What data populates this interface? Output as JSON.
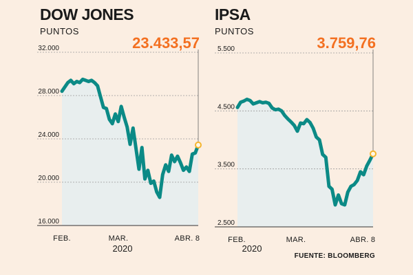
{
  "source": "FUENTE: BLOOMBERG",
  "chart_data": [
    {
      "type": "area",
      "title": "DOW JONES",
      "ylabel": "PUNTOS",
      "last_value_label": "23.433,57",
      "ylim": [
        16000,
        32000
      ],
      "yticks": [
        16000,
        20000,
        24000,
        28000,
        32000
      ],
      "ytick_labels": [
        "16.000",
        "20.000",
        "24.000",
        "28.000",
        "32.000"
      ],
      "x_labels": [
        "FEB.",
        "MAR.",
        "ABR. 8"
      ],
      "year_label": "2020",
      "colors": {
        "line": "#0b8a86",
        "fill": "#e8eeee",
        "highlight": "#f37021",
        "marker": "#f5b52e"
      },
      "grid": true,
      "values": [
        28400,
        28800,
        29200,
        29400,
        29100,
        29300,
        29200,
        29500,
        29400,
        29300,
        29400,
        29200,
        28900,
        27900,
        26900,
        26800,
        25800,
        25400,
        26300,
        25600,
        27000,
        26000,
        25100,
        23500,
        25000,
        23100,
        21200,
        23200,
        20300,
        21100,
        19900,
        20100,
        19100,
        18600,
        20700,
        21600,
        21000,
        22500,
        21900,
        22400,
        21800,
        21100,
        21400,
        21000,
        22600,
        22700,
        23434
      ]
    },
    {
      "type": "area",
      "title": "IPSA",
      "ylabel": "PUNTOS",
      "last_value_label": "3.759,76",
      "ylim": [
        2500,
        5500
      ],
      "yticks": [
        2500,
        3500,
        4500,
        5500
      ],
      "ytick_labels": [
        "2.500",
        "3.500",
        "4.500",
        "5.500"
      ],
      "x_labels": [
        "FEB.",
        "MAR.",
        "ABR. 8"
      ],
      "year_label": "2020",
      "colors": {
        "line": "#0b8a86",
        "fill": "#e8eeee",
        "highlight": "#f37021",
        "marker": "#f5b52e"
      },
      "grid": true,
      "values": [
        4560,
        4650,
        4670,
        4700,
        4680,
        4620,
        4640,
        4660,
        4640,
        4650,
        4630,
        4550,
        4520,
        4530,
        4500,
        4420,
        4360,
        4310,
        4250,
        4150,
        4290,
        4280,
        4350,
        4300,
        4200,
        4050,
        4000,
        3750,
        3700,
        3200,
        3150,
        2880,
        3050,
        2900,
        2880,
        3100,
        3200,
        3230,
        3300,
        3450,
        3400,
        3550,
        3650,
        3760
      ]
    }
  ]
}
